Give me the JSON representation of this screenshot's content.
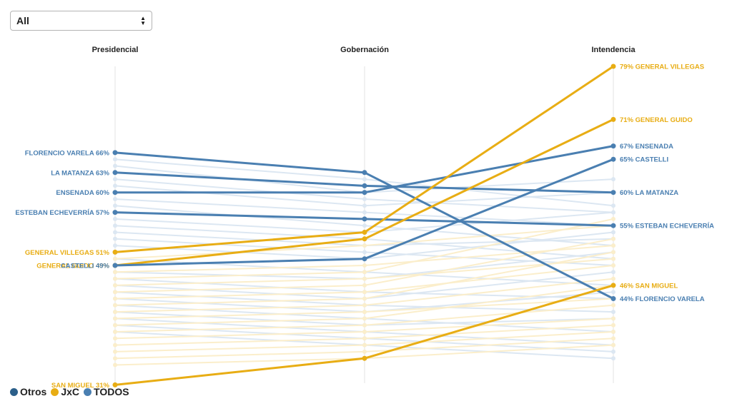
{
  "filter": {
    "value": "All"
  },
  "legend": [
    {
      "label": "Otros",
      "color": "#2b5f8a"
    },
    {
      "label": "JxC",
      "color": "#e8ad14"
    },
    {
      "label": "TODOS",
      "color": "#4a7fb1"
    }
  ],
  "chart_data": {
    "type": "slope",
    "axes": [
      "Presidencial",
      "Gobernación",
      "Intendencia"
    ],
    "colors": {
      "todos": "#4a7fb1",
      "jxc": "#e8ad14",
      "todos_faded": "#dce7f2",
      "jxc_faded": "#fbeecb"
    },
    "highlighted": [
      {
        "name": "FLORENCIO VARELA",
        "group": "todos",
        "values": [
          66,
          63,
          44
        ]
      },
      {
        "name": "LA MATANZA",
        "group": "todos",
        "values": [
          63,
          61,
          60
        ]
      },
      {
        "name": "ENSENADA",
        "group": "todos",
        "values": [
          60,
          60,
          67
        ]
      },
      {
        "name": "ESTEBAN ECHEVERRÍA",
        "group": "todos",
        "values": [
          57,
          56,
          55
        ]
      },
      {
        "name": "GENERAL VILLEGAS",
        "group": "jxc",
        "values": [
          51,
          54,
          79
        ]
      },
      {
        "name": "GENERAL GUIDO",
        "group": "jxc",
        "values": [
          49,
          53,
          71
        ]
      },
      {
        "name": "CASTELLI",
        "group": "todos",
        "values": [
          49,
          50,
          65
        ]
      },
      {
        "name": "SAN MIGUEL",
        "group": "jxc",
        "values": [
          31,
          35,
          46
        ]
      }
    ],
    "background": [
      {
        "group": "todos",
        "values": [
          65,
          62,
          58
        ]
      },
      {
        "group": "todos",
        "values": [
          64,
          60,
          62
        ]
      },
      {
        "group": "todos",
        "values": [
          62,
          59,
          57
        ]
      },
      {
        "group": "todos",
        "values": [
          61,
          58,
          60
        ]
      },
      {
        "group": "todos",
        "values": [
          59,
          57,
          55
        ]
      },
      {
        "group": "todos",
        "values": [
          58,
          55,
          52
        ]
      },
      {
        "group": "todos",
        "values": [
          56,
          54,
          57
        ]
      },
      {
        "group": "todos",
        "values": [
          55,
          53,
          50
        ]
      },
      {
        "group": "todos",
        "values": [
          54,
          52,
          53
        ]
      },
      {
        "group": "todos",
        "values": [
          53,
          51,
          49
        ]
      },
      {
        "group": "todos",
        "values": [
          52,
          50,
          54
        ]
      },
      {
        "group": "todos",
        "values": [
          50,
          48,
          46
        ]
      },
      {
        "group": "todos",
        "values": [
          48,
          47,
          51
        ]
      },
      {
        "group": "todos",
        "values": [
          47,
          45,
          44
        ]
      },
      {
        "group": "todos",
        "values": [
          46,
          44,
          48
        ]
      },
      {
        "group": "todos",
        "values": [
          45,
          43,
          42
        ]
      },
      {
        "group": "todos",
        "values": [
          44,
          42,
          45
        ]
      },
      {
        "group": "todos",
        "values": [
          43,
          41,
          39
        ]
      },
      {
        "group": "todos",
        "values": [
          42,
          40,
          41
        ]
      },
      {
        "group": "todos",
        "values": [
          41,
          39,
          37
        ]
      },
      {
        "group": "todos",
        "values": [
          40,
          38,
          36
        ]
      },
      {
        "group": "todos",
        "values": [
          39,
          37,
          35
        ]
      },
      {
        "group": "jxc",
        "values": [
          50,
          52,
          55
        ]
      },
      {
        "group": "jxc",
        "values": [
          48,
          49,
          52
        ]
      },
      {
        "group": "jxc",
        "values": [
          47,
          48,
          56
        ]
      },
      {
        "group": "jxc",
        "values": [
          46,
          47,
          50
        ]
      },
      {
        "group": "jxc",
        "values": [
          45,
          46,
          53
        ]
      },
      {
        "group": "jxc",
        "values": [
          44,
          45,
          49
        ]
      },
      {
        "group": "jxc",
        "values": [
          43,
          44,
          51
        ]
      },
      {
        "group": "jxc",
        "values": [
          42,
          43,
          47
        ]
      },
      {
        "group": "jxc",
        "values": [
          41,
          42,
          44
        ]
      },
      {
        "group": "jxc",
        "values": [
          40,
          41,
          46
        ]
      },
      {
        "group": "jxc",
        "values": [
          39,
          40,
          43
        ]
      },
      {
        "group": "jxc",
        "values": [
          38,
          39,
          41
        ]
      },
      {
        "group": "jxc",
        "values": [
          37,
          38,
          40
        ]
      },
      {
        "group": "jxc",
        "values": [
          36,
          37,
          39
        ]
      },
      {
        "group": "jxc",
        "values": [
          35,
          36,
          38
        ]
      },
      {
        "group": "jxc",
        "values": [
          34,
          35,
          37
        ]
      }
    ]
  }
}
